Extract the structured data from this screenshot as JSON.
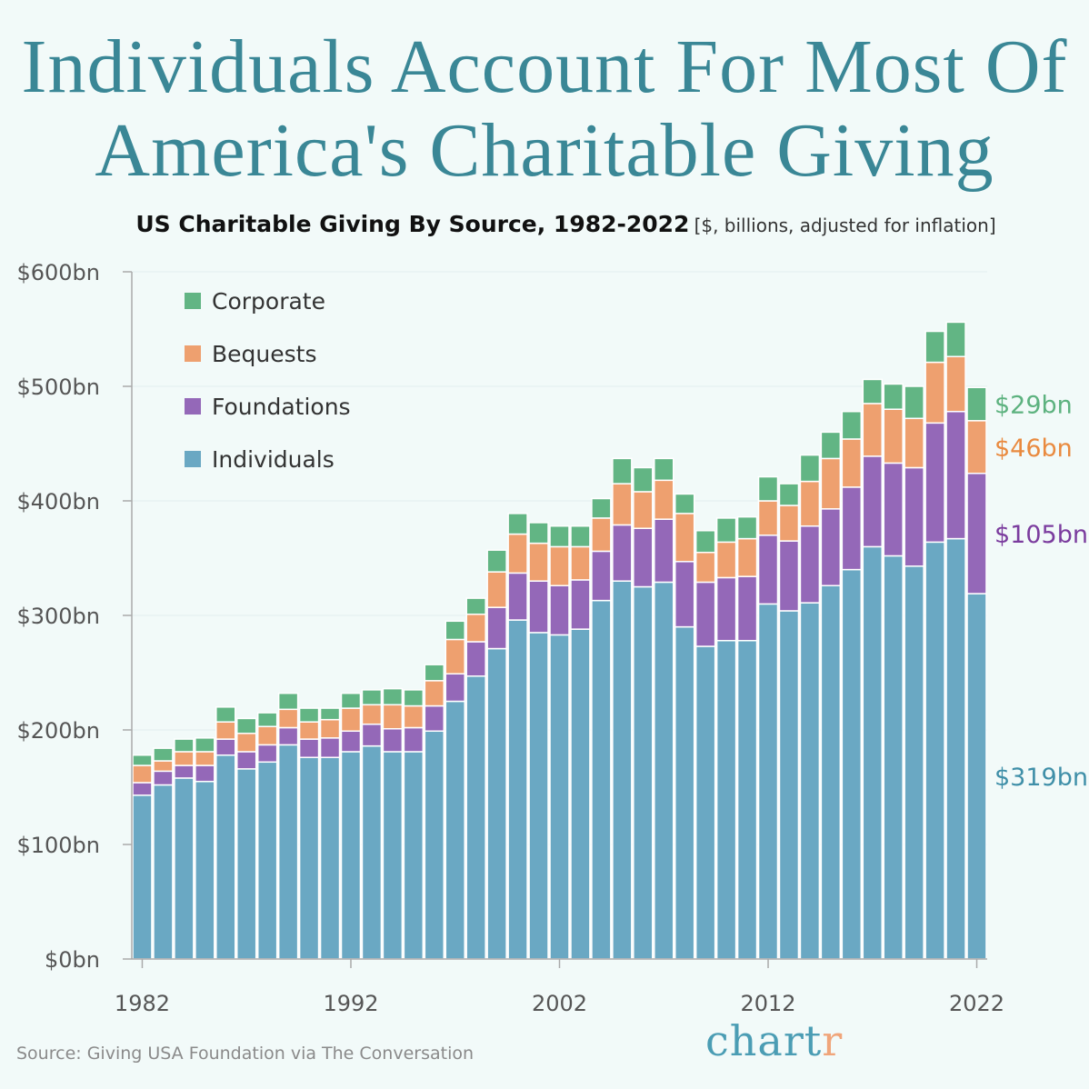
{
  "title_lines": [
    "Individuals Account For Most Of",
    "America's Charitable Giving"
  ],
  "subtitle": "US Charitable Giving By Source, 1982-2022",
  "subtitle_unit": "[$, billions, adjusted for inflation]",
  "source": "Source: Giving USA Foundation via The Conversation",
  "logo": {
    "main": "chart",
    "accent": "r"
  },
  "colors": {
    "Individuals": "#6aa8c3",
    "Foundations": "#9468b8",
    "Bequests": "#eea06f",
    "Corporate": "#62b584",
    "title": "#3a8796"
  },
  "chart_data": {
    "type": "bar",
    "stacked": true,
    "title": "US Charitable Giving By Source, 1982-2022",
    "ylabel": "",
    "xlabel": "",
    "ylim": [
      0,
      600
    ],
    "yticks": [
      "$0bn",
      "$100bn",
      "$200bn",
      "$300bn",
      "$400bn",
      "$500bn",
      "$600bn"
    ],
    "xticks": [
      "1982",
      "1992",
      "2002",
      "2012",
      "2022"
    ],
    "legend_position": "top-left",
    "categories": [
      1982,
      1983,
      1984,
      1985,
      1986,
      1987,
      1988,
      1989,
      1990,
      1991,
      1992,
      1993,
      1994,
      1995,
      1996,
      1997,
      1998,
      1999,
      2000,
      2001,
      2002,
      2003,
      2004,
      2005,
      2006,
      2007,
      2008,
      2009,
      2010,
      2011,
      2012,
      2013,
      2014,
      2015,
      2016,
      2017,
      2018,
      2019,
      2020,
      2021,
      2022
    ],
    "series": [
      {
        "name": "Individuals",
        "color": "#6aa8c3",
        "values": [
          143,
          152,
          158,
          155,
          178,
          166,
          172,
          187,
          176,
          176,
          181,
          186,
          181,
          181,
          199,
          225,
          247,
          271,
          296,
          285,
          283,
          288,
          313,
          330,
          325,
          329,
          290,
          273,
          278,
          278,
          310,
          304,
          311,
          326,
          340,
          360,
          352,
          343,
          364,
          367,
          319
        ],
        "end_label": "$319bn",
        "end_label_color": "#3f8fa8"
      },
      {
        "name": "Foundations",
        "color": "#9468b8",
        "values": [
          11,
          12,
          11,
          14,
          14,
          15,
          15,
          15,
          16,
          17,
          18,
          19,
          20,
          21,
          22,
          24,
          30,
          36,
          41,
          45,
          43,
          43,
          43,
          49,
          51,
          55,
          57,
          56,
          55,
          56,
          60,
          61,
          67,
          67,
          72,
          79,
          81,
          86,
          104,
          111,
          105
        ],
        "end_label": "$105bn",
        "end_label_color": "#7b3c9e"
      },
      {
        "name": "Bequests",
        "color": "#eea06f",
        "values": [
          15,
          9,
          12,
          12,
          15,
          16,
          16,
          16,
          15,
          16,
          20,
          17,
          21,
          19,
          22,
          30,
          24,
          31,
          34,
          33,
          34,
          29,
          29,
          36,
          32,
          34,
          42,
          26,
          31,
          33,
          30,
          31,
          39,
          44,
          42,
          46,
          47,
          43,
          53,
          48,
          46
        ],
        "end_label": "$46bn",
        "end_label_color": "#e98a3f"
      },
      {
        "name": "Corporate",
        "color": "#62b584",
        "values": [
          9,
          11,
          11,
          12,
          13,
          13,
          12,
          14,
          12,
          10,
          13,
          13,
          14,
          14,
          14,
          16,
          14,
          19,
          18,
          18,
          18,
          18,
          17,
          22,
          21,
          19,
          17,
          19,
          21,
          19,
          21,
          19,
          23,
          23,
          24,
          21,
          22,
          28,
          27,
          30,
          29
        ],
        "end_label": "$29bn",
        "end_label_color": "#5db27f"
      }
    ],
    "legend_order": [
      "Corporate",
      "Bequests",
      "Foundations",
      "Individuals"
    ]
  }
}
